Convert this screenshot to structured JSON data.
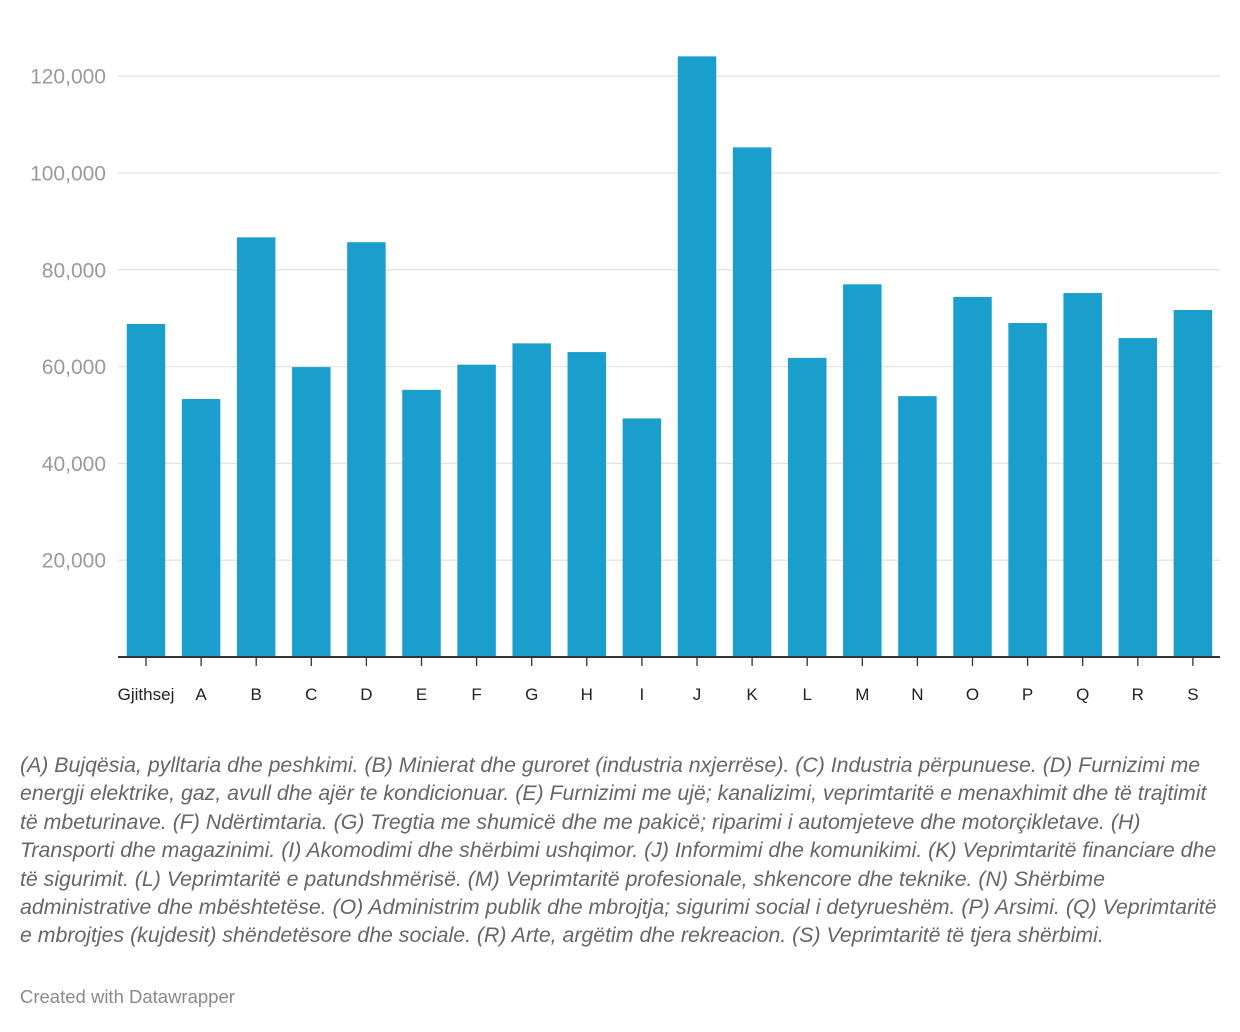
{
  "chart_data": {
    "type": "bar",
    "categories": [
      "Gjithsej",
      "A",
      "B",
      "C",
      "D",
      "E",
      "F",
      "G",
      "H",
      "I",
      "J",
      "K",
      "L",
      "M",
      "N",
      "O",
      "P",
      "Q",
      "R",
      "S"
    ],
    "values": [
      68800,
      53300,
      86700,
      59900,
      85700,
      55200,
      60400,
      64800,
      63000,
      49300,
      124100,
      105300,
      61800,
      77000,
      53900,
      74400,
      69000,
      75200,
      65900,
      71700
    ],
    "ylim": [
      0,
      128000
    ],
    "yticks": [
      20000,
      40000,
      60000,
      80000,
      100000,
      120000
    ],
    "ytick_labels": [
      "20,000",
      "40,000",
      "60,000",
      "80,000",
      "100,000",
      "120,000"
    ],
    "title": "",
    "xlabel": "",
    "ylabel": "",
    "grid": true,
    "bar_color": "#1a9fcc"
  },
  "notes": "(A) Bujqësia, pylltaria dhe peshkimi. (B) Minierat dhe guroret (industria nxjerrëse). (C) Industria përpunuese. (D) Furnizimi me energji elektrike, gaz, avull dhe ajër te kondicionuar. (E) Furnizimi me ujë; kanalizimi, veprimtaritë e menaxhimit dhe të trajtimit të mbeturinave. (F) Ndërtimtaria. (G) Tregtia me shumicë dhe me pakicë; riparimi i automjeteve dhe motorçikletave. (H) Transporti dhe magazinimi. (I) Akomodimi dhe shërbimi ushqimor. (J) Informimi dhe komunikimi. (K) Veprimtaritë financiare dhe të sigurimit. (L) Veprimtaritë e patundshmërisë. (M) Veprimtaritë profesionale, shkencore dhe teknike. (N) Shërbime administrative dhe mbështetëse. (O) Administrim publik dhe mbrojtja; sigurimi social i detyrueshëm. (P) Arsimi. (Q) Veprimtaritë e mbrojtjes (kujdesit) shëndetësore dhe sociale. (R) Arte, argëtim dhe rekreacion. (S) Veprimtaritë të tjera shërbimi.",
  "credit": "Created with Datawrapper"
}
